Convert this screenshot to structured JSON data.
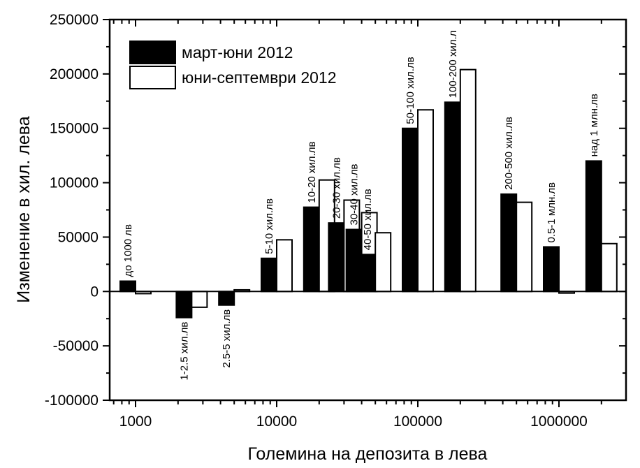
{
  "chart_data": {
    "type": "bar",
    "title": "",
    "xlabel": "Големина на депозита в лева",
    "ylabel": "Изменение в хил. лева",
    "xscale": "log",
    "xlim": [
      680,
      3000000
    ],
    "ylim": [
      -100000,
      250000
    ],
    "x_ticks": [
      1000,
      10000,
      100000,
      1000000
    ],
    "x_tick_labels": [
      "1000",
      "10000",
      "100000",
      "1000000"
    ],
    "y_ticks": [
      -100000,
      -50000,
      0,
      50000,
      100000,
      150000,
      200000,
      250000
    ],
    "y_tick_labels": [
      "-100000",
      "-50000",
      "0",
      "50000",
      "100000",
      "150000",
      "200000",
      "250000"
    ],
    "grid": false,
    "legend_position": "top-left",
    "categories": [
      "до 1000 лв",
      "1-2.5 хил.лв",
      "2.5-5 хил.лв",
      "5-10 хил.лв",
      "10-20 хил.лв",
      "20-30 хил.лв",
      "30-40 хил.лв",
      "40-50 хил.лв",
      "50-100 хил.лв",
      "100-200 хил.л",
      "200-500 хил.лв",
      "0.5-1 млн.лв",
      "над 1 млн.лв"
    ],
    "category_x": [
      1000,
      2500,
      5000,
      10000,
      20000,
      30000,
      40000,
      50000,
      100000,
      200000,
      500000,
      1000000,
      2000000
    ],
    "series": [
      {
        "name": "март-юни 2012",
        "fill": "#000000",
        "values": [
          9500,
          -24000,
          -12500,
          30500,
          77500,
          63000,
          57000,
          34000,
          150000,
          174000,
          89500,
          41000,
          120000
        ]
      },
      {
        "name": "юни-септември 2012",
        "fill": "#ffffff",
        "values": [
          -2000,
          -14500,
          1500,
          47500,
          102500,
          84000,
          72500,
          54000,
          167000,
          204000,
          82000,
          -1500,
          44000
        ]
      }
    ]
  }
}
